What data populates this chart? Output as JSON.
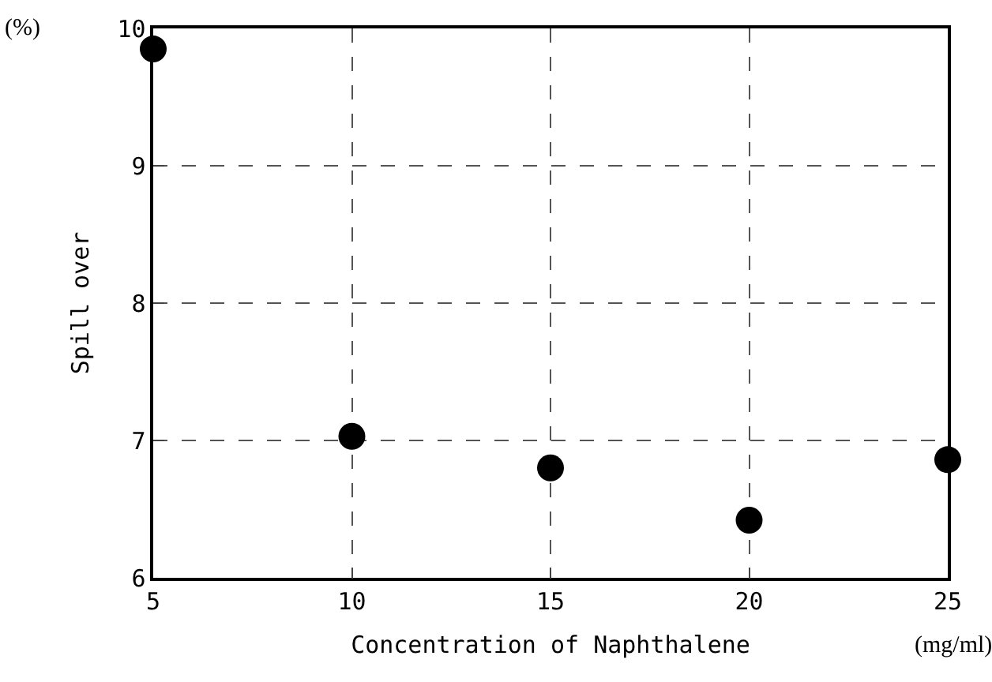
{
  "chart_data": {
    "type": "scatter",
    "xlabel": "Concentration of Naphthalene",
    "ylabel": "Spill over",
    "annotations": [
      "(%)",
      "(mg/ml)"
    ],
    "x": [
      5,
      10,
      15,
      20,
      25
    ],
    "series": [
      {
        "color": "#000000",
        "values": [
          9.85,
          7.03,
          6.8,
          6.42,
          6.86
        ]
      }
    ],
    "xlim": [
      5,
      25
    ],
    "xticks": [
      5,
      10,
      15,
      20,
      25
    ],
    "ylim": [
      6,
      10
    ],
    "yticks": [
      6,
      7,
      8,
      9,
      10
    ],
    "grid": true,
    "marker": "circle"
  }
}
